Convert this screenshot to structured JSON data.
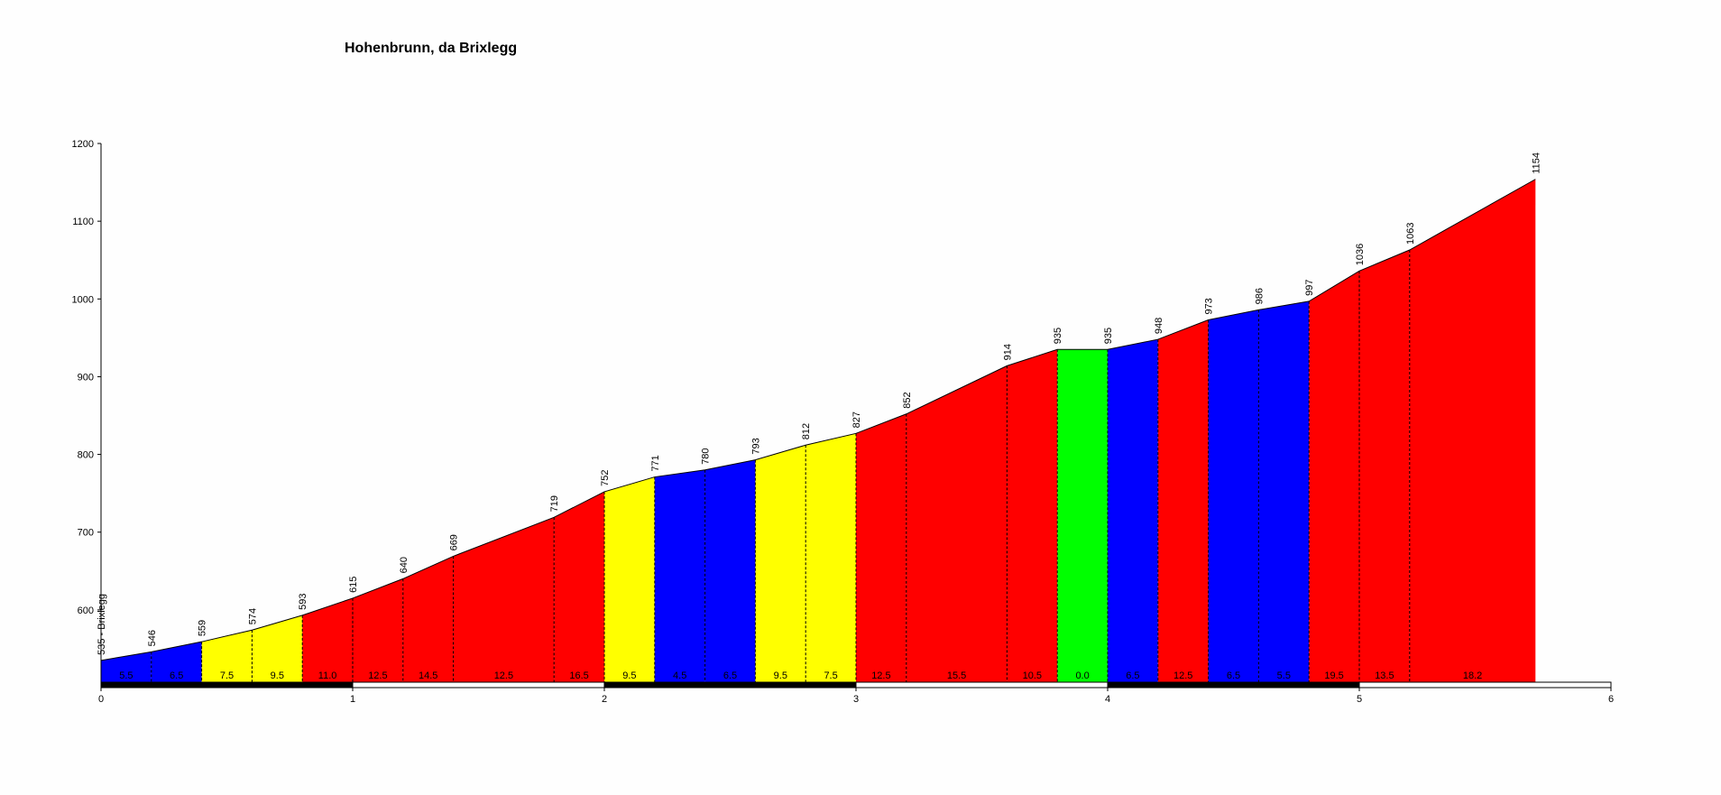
{
  "chart_data": {
    "type": "profile",
    "title": "Hohenbrunn, da Brixlegg",
    "x": [
      0,
      0.2,
      0.4,
      0.6,
      0.8,
      1.0,
      1.2,
      1.4,
      1.8,
      2.0,
      2.2,
      2.4,
      2.6,
      2.8,
      3.0,
      3.2,
      3.6,
      3.8,
      4.0,
      4.2,
      4.4,
      4.6,
      4.8,
      5.0,
      5.2,
      5.7
    ],
    "values": [
      535,
      546,
      559,
      574,
      593,
      615,
      640,
      669,
      719,
      752,
      771,
      780,
      793,
      812,
      827,
      852,
      914,
      935,
      935,
      948,
      973,
      986,
      997,
      1036,
      1063,
      1154
    ],
    "value_labels": [
      "535 - Brixlegg",
      "546",
      "559",
      "574",
      "593",
      "615",
      "640",
      "669",
      "719",
      "752",
      "771",
      "780",
      "793",
      "812",
      "827",
      "852",
      "914",
      "935",
      "935",
      "948",
      "973",
      "986",
      "997",
      "1036",
      "1063",
      "1154"
    ],
    "segment_labels": [
      "5.5",
      "6.5",
      "7.5",
      "9.5",
      "11.0",
      "12.5",
      "14.5",
      "12.5",
      "16.5",
      "9.5",
      "4.5",
      "6.5",
      "9.5",
      "7.5",
      "12.5",
      "15.5",
      "10.5",
      "0.0",
      "6.5",
      "12.5",
      "6.5",
      "5.5",
      "19.5",
      "13.5",
      "18.2"
    ],
    "segment_colors": [
      "#0000ff",
      "#0000ff",
      "#ffff00",
      "#ffff00",
      "#ff0000",
      "#ff0000",
      "#ff0000",
      "#ff0000",
      "#ff0000",
      "#ffff00",
      "#0000ff",
      "#0000ff",
      "#ffff00",
      "#ffff00",
      "#ff0000",
      "#ff0000",
      "#ff0000",
      "#00ff00",
      "#0000ff",
      "#ff0000",
      "#0000ff",
      "#0000ff",
      "#ff0000",
      "#ff0000",
      "#ff0000"
    ],
    "xlim": [
      0,
      6
    ],
    "xticks": [
      0,
      1,
      2,
      3,
      4,
      5,
      6
    ],
    "ylim": [
      500,
      1200
    ],
    "yticks": [
      600,
      700,
      800,
      900,
      1000,
      1100,
      1200
    ]
  }
}
